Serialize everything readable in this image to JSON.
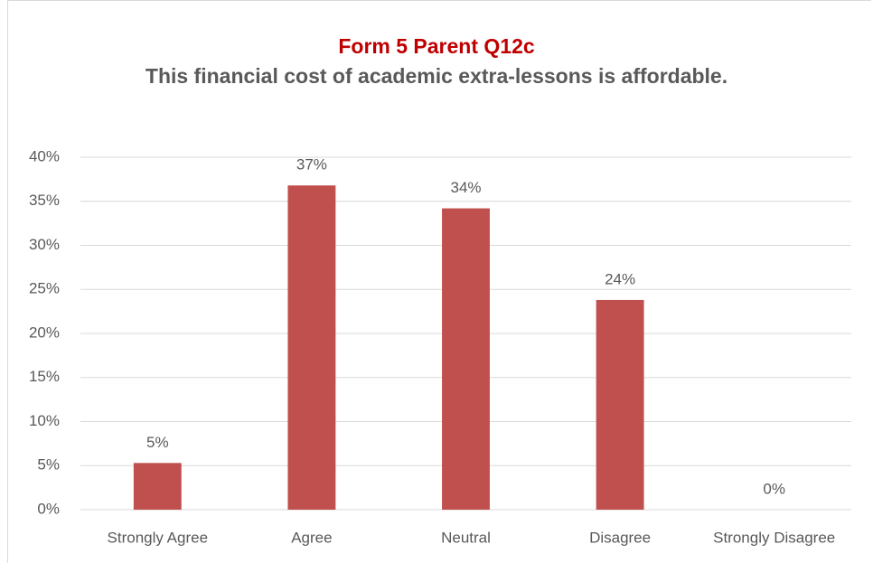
{
  "chart_data": {
    "type": "bar",
    "title": "Form 5 Parent Q12c",
    "subtitle": "This financial cost of academic extra-lessons is affordable.",
    "categories": [
      "Strongly Agree",
      "Agree",
      "Neutral",
      "Disagree",
      "Strongly Disagree"
    ],
    "values": [
      5.3,
      36.8,
      34.2,
      23.8,
      0
    ],
    "value_labels": [
      "5%",
      "37%",
      "34%",
      "24%",
      "0%"
    ],
    "color": "#c0504d",
    "ylim": [
      0,
      40
    ],
    "yticks": [
      {
        "value": 0,
        "label": "0%"
      },
      {
        "value": 5,
        "label": "5%"
      },
      {
        "value": 10,
        "label": "10%"
      },
      {
        "value": 15,
        "label": "15%"
      },
      {
        "value": 20,
        "label": "20%"
      },
      {
        "value": 25,
        "label": "25%"
      },
      {
        "value": 30,
        "label": "30%"
      },
      {
        "value": 35,
        "label": "35%"
      },
      {
        "value": 40,
        "label": "40%"
      }
    ],
    "grid": true
  }
}
